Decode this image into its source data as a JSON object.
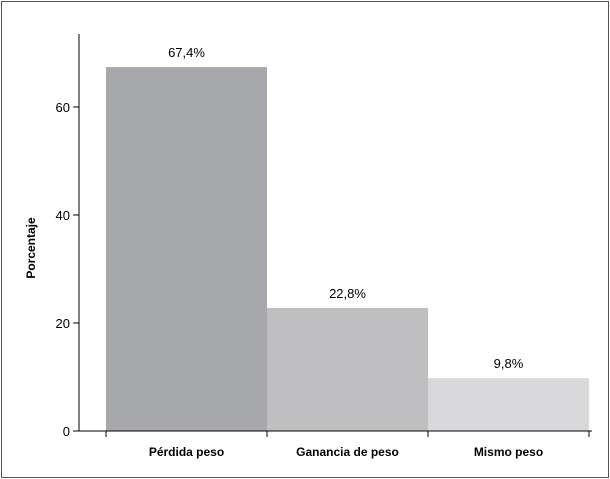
{
  "chart_data": {
    "type": "bar",
    "categories": [
      "Pérdida peso",
      "Ganancia de peso",
      "Mismo peso"
    ],
    "values": [
      67.4,
      22.8,
      9.8
    ],
    "data_labels": [
      "67,4%",
      "22,8%",
      "9,8%"
    ],
    "colors": [
      "#a7a8ab",
      "#bfbfc1",
      "#d9d9db"
    ],
    "title": "",
    "xlabel": "",
    "ylabel": "Porcentaje",
    "ylim": [
      0,
      74
    ],
    "yticks": [
      0,
      20,
      40,
      60
    ],
    "ytick_labels": [
      "0",
      "20",
      "40",
      "60"
    ],
    "grid": false,
    "legend": "none"
  }
}
